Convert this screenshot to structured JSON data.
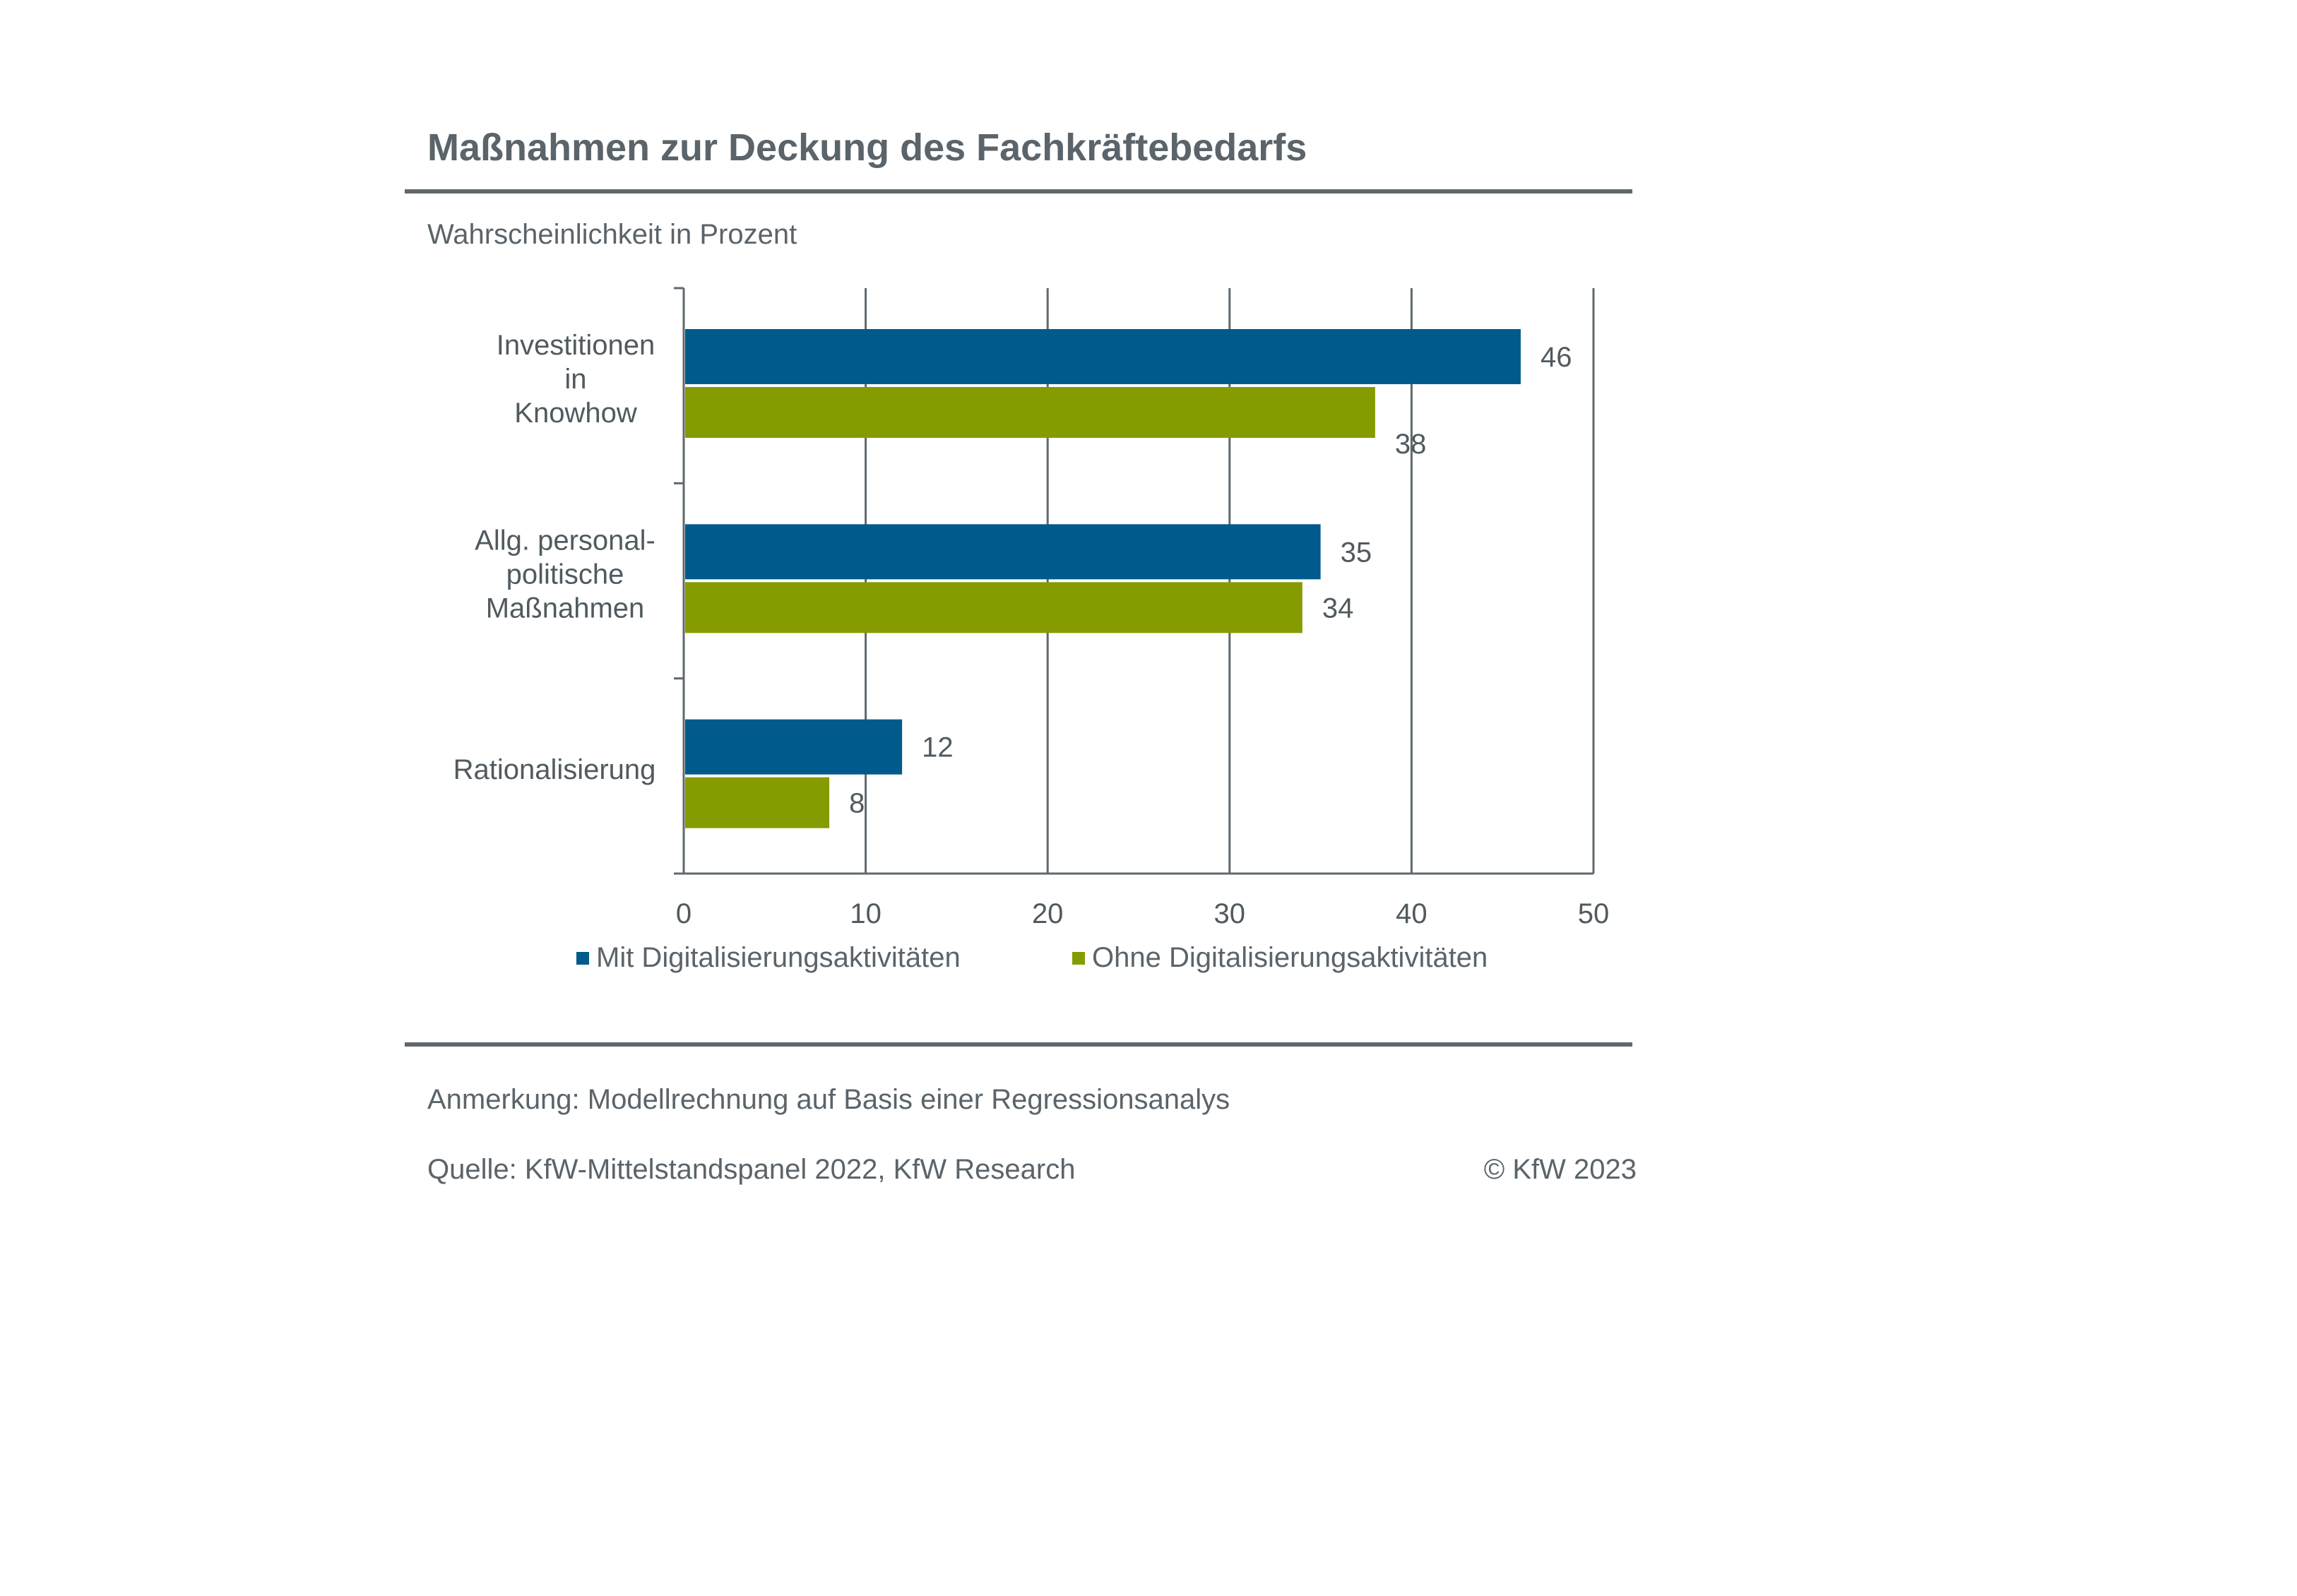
{
  "header": {
    "title": "Maßnahmen zur Deckung des Fachkräftebedarfs",
    "subtitle": "Wahrscheinlichkeit in Prozent"
  },
  "footer": {
    "note": "Anmerkung: Modellrechnung auf Basis einer Regressionsanalys",
    "source": "Quelle: KfW-Mittelstandspanel 2022, KfW Research",
    "copyright": "© KfW 2023"
  },
  "chart_data": {
    "type": "bar",
    "orientation": "horizontal",
    "title": "Maßnahmen zur Deckung des Fachkräftebedarfs",
    "subtitle": "Wahrscheinlichkeit in Prozent",
    "categories": [
      [
        "Investitionen",
        "in",
        "Knowhow"
      ],
      [
        "Allg. personal-",
        "politische",
        "Maßnahmen"
      ],
      [
        "Rationalisierung"
      ]
    ],
    "series": [
      {
        "name": "Mit Digitalisierungsaktivitäten",
        "values": [
          46,
          35,
          12
        ],
        "labels": [
          "46",
          "35",
          "12"
        ],
        "color": "#005a8c"
      },
      {
        "name": "Ohne Digitalisierungsaktivitäten",
        "values": [
          38,
          34,
          8
        ],
        "labels": [
          "38",
          "34",
          "8"
        ],
        "color": "#869b00"
      }
    ],
    "xlim": [
      0,
      50
    ],
    "xticks": [
      0,
      10,
      20,
      30,
      40,
      50
    ],
    "grid": true,
    "legend_position": "bottom",
    "colors": {
      "axis": "#5f686d",
      "text": "#505a5f"
    }
  }
}
